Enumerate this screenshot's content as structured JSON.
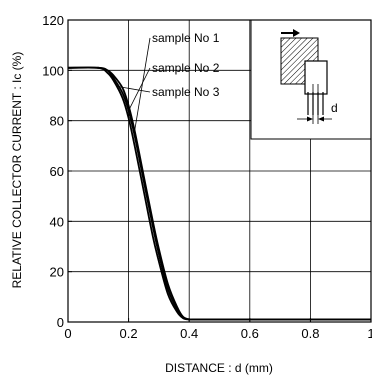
{
  "chart_data": {
    "type": "line",
    "xlabel": "DISTANCE : d (mm)",
    "ylabel": "RELATIVE COLLECTOR CURRENT : Ic (%)",
    "xlim": [
      0,
      1.0
    ],
    "ylim": [
      0,
      120
    ],
    "xticks": [
      0,
      0.2,
      0.4,
      0.6,
      0.8,
      1.0
    ],
    "xtick_labels": [
      "0",
      "0.2",
      "0.4",
      "0.6",
      "0.8",
      "1"
    ],
    "yticks": [
      0,
      20,
      40,
      60,
      80,
      100,
      120
    ],
    "ytick_labels": [
      "0",
      "20",
      "40",
      "60",
      "80",
      "100",
      "120"
    ],
    "grid": true,
    "inset": "sensor diagram with dimension d",
    "inset_label": "d",
    "series": [
      {
        "name": "sample No 1",
        "x": [
          0,
          0.1,
          0.13,
          0.15,
          0.18,
          0.2,
          0.22,
          0.25,
          0.28,
          0.3,
          0.33,
          0.36,
          0.38,
          0.4,
          0.42,
          0.45,
          0.5,
          1.0
        ],
        "y": [
          101,
          101,
          100,
          98,
          93,
          86,
          76,
          58,
          40,
          29,
          15,
          6,
          2,
          1,
          1,
          1,
          1,
          1
        ]
      },
      {
        "name": "sample No 2",
        "x": [
          0,
          0.1,
          0.13,
          0.15,
          0.18,
          0.2,
          0.22,
          0.25,
          0.28,
          0.3,
          0.33,
          0.36,
          0.38,
          0.4,
          0.42,
          0.45,
          0.5,
          1.0
        ],
        "y": [
          101,
          101,
          100,
          97,
          91,
          84,
          74,
          56,
          38,
          27,
          13,
          5,
          2,
          1,
          1,
          1,
          1,
          1
        ]
      },
      {
        "name": "sample No 3",
        "x": [
          0,
          0.1,
          0.13,
          0.15,
          0.18,
          0.2,
          0.22,
          0.25,
          0.28,
          0.3,
          0.33,
          0.36,
          0.38,
          0.4,
          0.42,
          0.45,
          0.5,
          1.0
        ],
        "y": [
          101,
          101,
          99,
          96,
          89,
          81,
          70,
          52,
          34,
          24,
          11,
          4,
          1.5,
          1,
          1,
          1,
          1,
          1
        ]
      }
    ],
    "annotations": [
      {
        "text": "sample No 1",
        "series": 0,
        "at_x": 0.22
      },
      {
        "text": "sample No 2",
        "series": 1,
        "at_x": 0.2
      },
      {
        "text": "sample No 3",
        "series": 2,
        "at_x": 0.16
      }
    ]
  }
}
